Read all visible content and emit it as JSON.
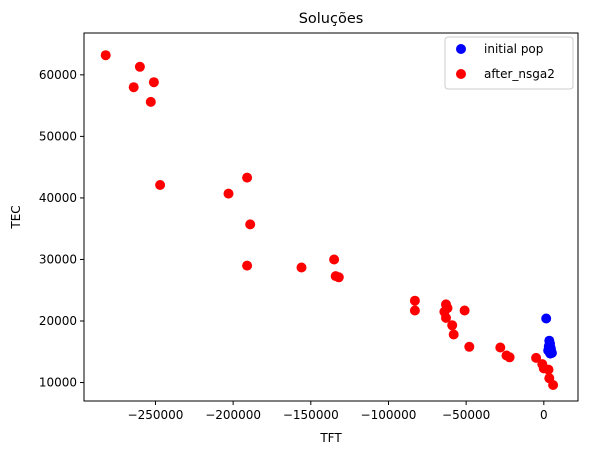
{
  "chart_data": {
    "type": "scatter",
    "title": "Soluções",
    "xlabel": "TFT",
    "ylabel": "TEC",
    "xlim": [
      -296000,
      22000
    ],
    "ylim": [
      7000,
      66800
    ],
    "xticks": [
      -250000,
      -200000,
      -150000,
      -100000,
      -50000,
      0
    ],
    "xtick_labels": [
      "−250000",
      "−200000",
      "−150000",
      "−100000",
      "−50000",
      "0"
    ],
    "yticks": [
      10000,
      20000,
      30000,
      40000,
      50000,
      60000
    ],
    "ytick_labels": [
      "10000",
      "20000",
      "30000",
      "40000",
      "50000",
      "60000"
    ],
    "grid": false,
    "legend_position": "top-right",
    "series": [
      {
        "name": "initial pop",
        "color": "#0000ff",
        "points": [
          [
            1500,
            20400
          ],
          [
            3500,
            16800
          ],
          [
            4000,
            16300
          ],
          [
            3200,
            15900
          ],
          [
            4500,
            15600
          ],
          [
            3000,
            15300
          ],
          [
            4800,
            15100
          ],
          [
            3800,
            14900
          ],
          [
            5200,
            14800
          ],
          [
            2800,
            15200
          ],
          [
            4200,
            14700
          ]
        ]
      },
      {
        "name": "after_nsga2",
        "color": "#ff0000",
        "points": [
          [
            -282000,
            63200
          ],
          [
            -260000,
            61300
          ],
          [
            -251000,
            58800
          ],
          [
            -264000,
            58000
          ],
          [
            -253000,
            55600
          ],
          [
            -247000,
            42100
          ],
          [
            -191000,
            43300
          ],
          [
            -203000,
            40700
          ],
          [
            -189000,
            35700
          ],
          [
            -191000,
            29000
          ],
          [
            -156000,
            28700
          ],
          [
            -135000,
            30000
          ],
          [
            -134000,
            27300
          ],
          [
            -132000,
            27100
          ],
          [
            -83000,
            23300
          ],
          [
            -83000,
            21700
          ],
          [
            -63000,
            22700
          ],
          [
            -62000,
            22100
          ],
          [
            -64000,
            21500
          ],
          [
            -51000,
            21700
          ],
          [
            -63000,
            20500
          ],
          [
            -59000,
            19300
          ],
          [
            -58000,
            17800
          ],
          [
            -48000,
            15800
          ],
          [
            -28000,
            15700
          ],
          [
            -24000,
            14400
          ],
          [
            -22000,
            14100
          ],
          [
            -5000,
            14000
          ],
          [
            -1000,
            13000
          ],
          [
            0,
            12300
          ],
          [
            3000,
            12100
          ],
          [
            3500,
            10700
          ],
          [
            6000,
            9600
          ]
        ]
      }
    ]
  }
}
